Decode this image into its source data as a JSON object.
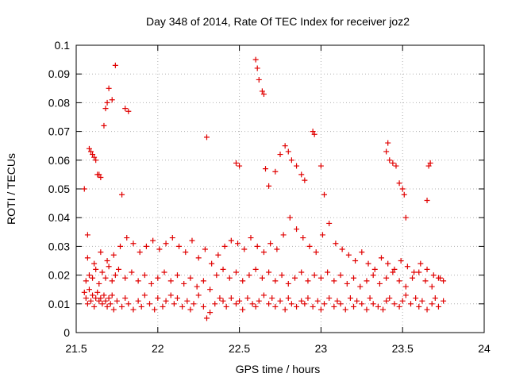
{
  "chart_data": {
    "type": "scatter",
    "title": "Day 348 of 2014, Rate Of TEC Index for receiver joz2",
    "xlabel": "GPS time / hours",
    "ylabel": "ROTI / TECUs",
    "xlim": [
      21.5,
      24
    ],
    "ylim": [
      0,
      0.1
    ],
    "xticks": [
      21.5,
      22,
      22.5,
      23,
      23.5,
      24
    ],
    "xtick_labels": [
      "21.5",
      "22",
      "22.5",
      "23",
      "23.5",
      "24"
    ],
    "yticks": [
      0,
      0.01,
      0.02,
      0.03,
      0.04,
      0.05,
      0.06,
      0.07,
      0.08,
      0.09,
      0.1
    ],
    "ytick_labels": [
      "0",
      "0.01",
      "0.02",
      "0.03",
      "0.04",
      "0.05",
      "0.06",
      "0.07",
      "0.08",
      "0.09",
      "0.1"
    ],
    "grid": true,
    "marker": "+",
    "marker_color": "#e00000",
    "series": [
      {
        "name": "ROTI",
        "x": [
          21.55,
          21.56,
          21.57,
          21.58,
          21.59,
          21.6,
          21.61,
          21.62,
          21.63,
          21.64,
          21.65,
          21.66,
          21.67,
          21.68,
          21.69,
          21.7,
          21.71,
          21.72,
          21.73,
          21.75,
          21.78,
          21.8,
          21.82,
          21.85,
          21.88,
          21.9,
          21.92,
          21.95,
          21.98,
          22.0,
          22.03,
          22.05,
          22.08,
          22.1,
          22.12,
          22.15,
          22.18,
          22.2,
          22.22,
          22.25,
          22.28,
          22.3,
          22.32,
          22.35,
          22.38,
          22.4,
          22.42,
          22.45,
          22.48,
          22.5,
          22.52,
          22.55,
          22.58,
          22.6,
          22.62,
          22.65,
          22.68,
          22.7,
          22.72,
          22.75,
          22.78,
          22.8,
          22.82,
          22.85,
          22.88,
          22.9,
          22.92,
          22.95,
          22.98,
          23.0,
          23.02,
          23.05,
          23.08,
          23.1,
          23.12,
          23.15,
          23.18,
          23.2,
          23.22,
          23.25,
          23.28,
          23.3,
          23.32,
          23.35,
          23.38,
          23.4,
          23.42,
          23.45,
          23.48,
          23.5,
          23.52,
          23.55,
          23.58,
          23.6,
          23.62,
          23.65,
          23.68,
          23.7,
          23.72,
          23.75,
          21.56,
          21.58,
          21.6,
          21.62,
          21.64,
          21.66,
          21.68,
          21.7,
          21.72,
          21.74,
          21.76,
          21.8,
          21.84,
          21.88,
          21.92,
          21.96,
          22.0,
          22.04,
          22.08,
          22.12,
          22.16,
          22.2,
          22.24,
          22.28,
          22.32,
          22.36,
          22.4,
          22.44,
          22.48,
          22.52,
          22.56,
          22.6,
          22.64,
          22.68,
          22.72,
          22.76,
          22.8,
          22.84,
          22.88,
          22.92,
          22.96,
          23.0,
          23.04,
          23.08,
          23.12,
          23.16,
          23.2,
          23.24,
          23.28,
          23.32,
          23.36,
          23.4,
          23.44,
          23.48,
          23.52,
          23.56,
          23.6,
          23.64,
          23.68,
          23.72,
          23.75,
          21.57,
          21.61,
          21.65,
          21.69,
          21.73,
          21.77,
          21.81,
          21.85,
          21.89,
          21.93,
          21.97,
          22.01,
          22.05,
          22.09,
          22.13,
          22.17,
          22.21,
          22.25,
          22.29,
          22.33,
          22.37,
          22.41,
          22.45,
          22.49,
          22.53,
          22.57,
          22.61,
          22.65,
          22.69,
          22.73,
          22.77,
          22.81,
          22.85,
          22.89,
          22.93,
          22.97,
          23.01,
          23.05,
          23.09,
          23.13,
          23.17,
          23.21,
          23.25,
          23.29,
          23.33,
          23.37,
          23.41,
          23.45,
          23.49,
          23.53,
          23.57,
          23.61,
          23.65,
          23.69,
          23.73,
          21.55,
          21.57,
          21.58,
          21.59,
          21.6,
          21.61,
          21.62,
          21.63,
          21.64,
          21.65,
          21.67,
          21.68,
          21.69,
          21.7,
          21.72,
          21.74,
          21.8,
          21.82,
          21.78,
          22.3,
          22.48,
          22.5,
          22.6,
          22.61,
          22.62,
          22.64,
          22.65,
          22.66,
          22.68,
          22.72,
          22.75,
          22.78,
          22.8,
          22.82,
          22.85,
          22.88,
          22.9,
          22.95,
          22.96,
          23.0,
          23.02,
          23.4,
          23.41,
          23.42,
          23.44,
          23.46,
          23.48,
          23.5,
          23.51,
          23.52,
          23.65,
          23.66,
          23.67
        ],
        "y": [
          0.014,
          0.012,
          0.01,
          0.015,
          0.011,
          0.013,
          0.009,
          0.012,
          0.014,
          0.011,
          0.012,
          0.01,
          0.013,
          0.011,
          0.009,
          0.012,
          0.01,
          0.013,
          0.008,
          0.011,
          0.009,
          0.012,
          0.01,
          0.008,
          0.011,
          0.009,
          0.013,
          0.01,
          0.008,
          0.012,
          0.009,
          0.011,
          0.013,
          0.01,
          0.012,
          0.009,
          0.011,
          0.008,
          0.01,
          0.013,
          0.009,
          0.005,
          0.007,
          0.01,
          0.012,
          0.011,
          0.009,
          0.012,
          0.01,
          0.011,
          0.008,
          0.012,
          0.01,
          0.009,
          0.011,
          0.013,
          0.01,
          0.012,
          0.009,
          0.011,
          0.008,
          0.012,
          0.01,
          0.009,
          0.011,
          0.01,
          0.012,
          0.009,
          0.011,
          0.008,
          0.01,
          0.012,
          0.009,
          0.011,
          0.01,
          0.008,
          0.012,
          0.009,
          0.011,
          0.01,
          0.008,
          0.012,
          0.01,
          0.009,
          0.008,
          0.011,
          0.012,
          0.01,
          0.009,
          0.011,
          0.013,
          0.01,
          0.012,
          0.009,
          0.011,
          0.008,
          0.01,
          0.012,
          0.009,
          0.011,
          0.018,
          0.02,
          0.019,
          0.022,
          0.017,
          0.021,
          0.019,
          0.023,
          0.018,
          0.02,
          0.022,
          0.019,
          0.021,
          0.018,
          0.02,
          0.017,
          0.019,
          0.021,
          0.018,
          0.02,
          0.017,
          0.019,
          0.016,
          0.018,
          0.015,
          0.02,
          0.022,
          0.019,
          0.021,
          0.018,
          0.02,
          0.022,
          0.019,
          0.021,
          0.018,
          0.02,
          0.017,
          0.019,
          0.021,
          0.018,
          0.02,
          0.019,
          0.021,
          0.018,
          0.02,
          0.017,
          0.019,
          0.016,
          0.018,
          0.02,
          0.017,
          0.019,
          0.021,
          0.018,
          0.016,
          0.019,
          0.021,
          0.018,
          0.016,
          0.019,
          0.018,
          0.026,
          0.024,
          0.028,
          0.025,
          0.027,
          0.03,
          0.033,
          0.031,
          0.028,
          0.03,
          0.032,
          0.029,
          0.031,
          0.033,
          0.03,
          0.028,
          0.032,
          0.026,
          0.029,
          0.024,
          0.027,
          0.03,
          0.032,
          0.031,
          0.029,
          0.033,
          0.03,
          0.028,
          0.031,
          0.029,
          0.034,
          0.04,
          0.036,
          0.033,
          0.03,
          0.028,
          0.034,
          0.038,
          0.031,
          0.029,
          0.027,
          0.025,
          0.028,
          0.024,
          0.022,
          0.026,
          0.024,
          0.022,
          0.025,
          0.023,
          0.021,
          0.024,
          0.022,
          0.02,
          0.019,
          0.05,
          0.034,
          0.064,
          0.063,
          0.062,
          0.061,
          0.06,
          0.055,
          0.055,
          0.054,
          0.072,
          0.078,
          0.08,
          0.085,
          0.081,
          0.093,
          0.078,
          0.077,
          0.048,
          0.068,
          0.059,
          0.058,
          0.095,
          0.092,
          0.088,
          0.084,
          0.083,
          0.057,
          0.051,
          0.056,
          0.062,
          0.065,
          0.063,
          0.06,
          0.058,
          0.055,
          0.053,
          0.07,
          0.069,
          0.058,
          0.048,
          0.063,
          0.066,
          0.06,
          0.059,
          0.058,
          0.052,
          0.05,
          0.048,
          0.04,
          0.046,
          0.058,
          0.059
        ]
      }
    ]
  }
}
